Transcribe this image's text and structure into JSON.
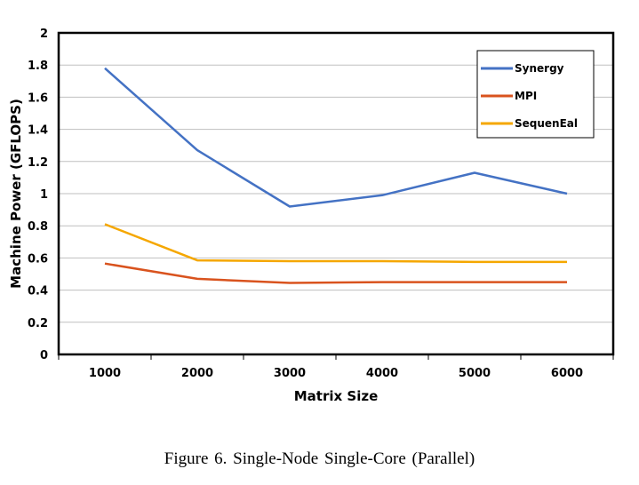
{
  "caption": "Figure 6.   Single-Node Single-Core (Parallel)",
  "chart_data": {
    "type": "line",
    "title": "",
    "xlabel": "Matrix Size",
    "ylabel": "Machine Power (GFLOPS)",
    "categories": [
      "1000",
      "2000",
      "3000",
      "4000",
      "5000",
      "6000"
    ],
    "ylim": [
      0,
      2
    ],
    "yticks": [
      "0",
      "0.2",
      "0.4",
      "0.6",
      "0.8",
      "1",
      "1.2",
      "1.4",
      "1.6",
      "1.8",
      "2"
    ],
    "grid": true,
    "legend_position": "top-right",
    "series": [
      {
        "name": "Synergy",
        "color": "#4472C4",
        "values": [
          1.78,
          1.27,
          0.92,
          0.99,
          1.13,
          1.0
        ]
      },
      {
        "name": "MPI",
        "color": "#D9531E",
        "values": [
          0.565,
          0.47,
          0.445,
          0.45,
          0.45,
          0.45
        ]
      },
      {
        "name": "SequenEal",
        "color": "#F5A700",
        "values": [
          0.81,
          0.585,
          0.58,
          0.58,
          0.575,
          0.575
        ]
      }
    ]
  }
}
